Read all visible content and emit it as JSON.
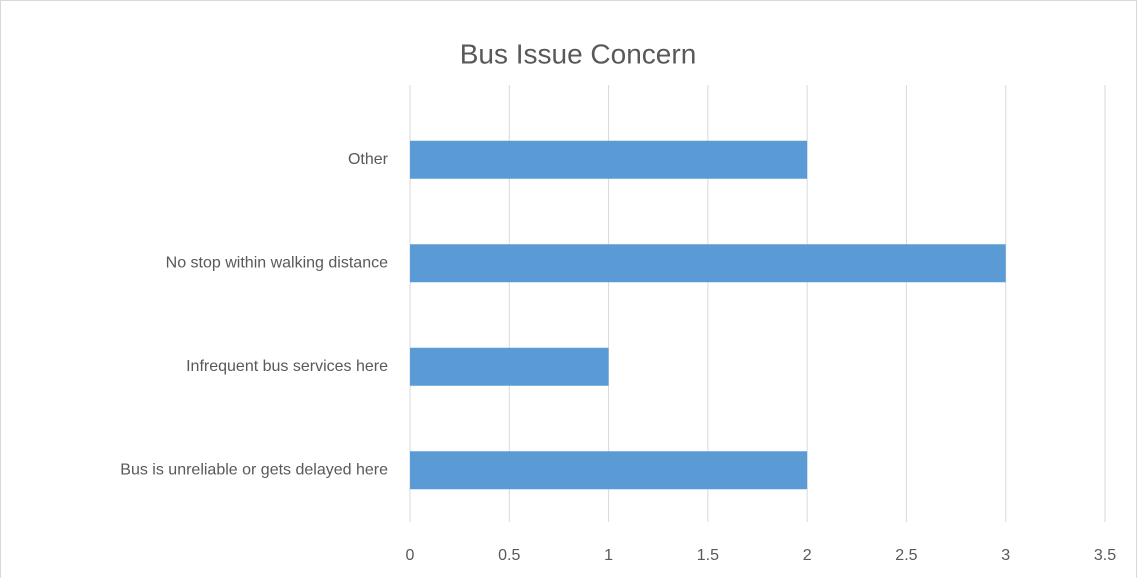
{
  "chart_data": {
    "type": "hbar",
    "title": "Bus Issue Concern",
    "categories": [
      "Bus is unreliable or gets delayed here",
      "Infrequent bus services here",
      "No stop within walking distance",
      "Other"
    ],
    "values": [
      2,
      1,
      3,
      2
    ],
    "color": "#5b9bd5",
    "xlim": [
      0,
      3.5
    ],
    "xticks": [
      0,
      0.5,
      1,
      1.5,
      2,
      2.5,
      3,
      3.5
    ],
    "grid": true
  }
}
